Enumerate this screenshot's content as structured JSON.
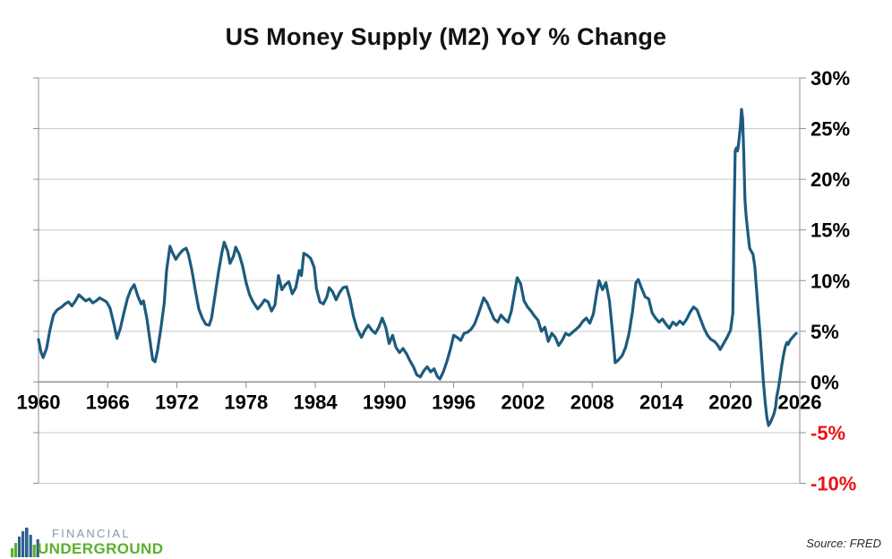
{
  "chart_data": {
    "type": "line",
    "title": "US Money Supply (M2) YoY % Change",
    "xlabel": "",
    "ylabel": "",
    "xlim": [
      1960,
      2026
    ],
    "ylim": [
      -10,
      30
    ],
    "grid": "horizontal-only",
    "legend": "none",
    "x_ticks": {
      "values": [
        1960,
        1966,
        1972,
        1978,
        1984,
        1990,
        1996,
        2002,
        2008,
        2014,
        2020,
        2026
      ],
      "labels": [
        "1960",
        "1966",
        "1972",
        "1978",
        "1984",
        "1990",
        "1996",
        "2002",
        "2008",
        "2014",
        "2020",
        "2026"
      ]
    },
    "y_ticks": {
      "values": [
        30,
        25,
        20,
        15,
        10,
        5,
        0,
        -5,
        -10
      ],
      "labels": [
        "30%",
        "25%",
        "20%",
        "15%",
        "10%",
        "5%",
        "0%",
        "-5%",
        "-10%"
      ]
    },
    "series": [
      {
        "name": "M2 money stock year-over-year percent change",
        "color": "#1c5b7e",
        "points": [
          [
            1960.0,
            4.2
          ],
          [
            1960.2,
            3.0
          ],
          [
            1960.4,
            2.4
          ],
          [
            1960.7,
            3.3
          ],
          [
            1961.0,
            5.2
          ],
          [
            1961.3,
            6.6
          ],
          [
            1961.6,
            7.1
          ],
          [
            1962.0,
            7.4
          ],
          [
            1962.3,
            7.7
          ],
          [
            1962.6,
            7.9
          ],
          [
            1962.9,
            7.5
          ],
          [
            1963.2,
            8.0
          ],
          [
            1963.5,
            8.6
          ],
          [
            1963.8,
            8.3
          ],
          [
            1964.1,
            8.0
          ],
          [
            1964.4,
            8.2
          ],
          [
            1964.7,
            7.8
          ],
          [
            1965.0,
            8.0
          ],
          [
            1965.3,
            8.3
          ],
          [
            1965.6,
            8.1
          ],
          [
            1965.9,
            7.9
          ],
          [
            1966.2,
            7.3
          ],
          [
            1966.5,
            5.9
          ],
          [
            1966.8,
            4.3
          ],
          [
            1967.1,
            5.3
          ],
          [
            1967.4,
            6.8
          ],
          [
            1967.7,
            8.2
          ],
          [
            1968.0,
            9.1
          ],
          [
            1968.3,
            9.6
          ],
          [
            1968.6,
            8.5
          ],
          [
            1968.9,
            7.7
          ],
          [
            1969.1,
            8.0
          ],
          [
            1969.4,
            6.2
          ],
          [
            1969.7,
            3.8
          ],
          [
            1969.9,
            2.2
          ],
          [
            1970.1,
            2.0
          ],
          [
            1970.3,
            3.0
          ],
          [
            1970.6,
            5.2
          ],
          [
            1970.9,
            7.8
          ],
          [
            1971.1,
            11.0
          ],
          [
            1971.4,
            13.4
          ],
          [
            1971.6,
            12.8
          ],
          [
            1971.9,
            12.1
          ],
          [
            1972.2,
            12.6
          ],
          [
            1972.5,
            13.0
          ],
          [
            1972.8,
            13.2
          ],
          [
            1973.0,
            12.6
          ],
          [
            1973.3,
            11.0
          ],
          [
            1973.6,
            9.0
          ],
          [
            1973.9,
            7.2
          ],
          [
            1974.2,
            6.3
          ],
          [
            1974.5,
            5.7
          ],
          [
            1974.8,
            5.6
          ],
          [
            1975.0,
            6.3
          ],
          [
            1975.3,
            8.5
          ],
          [
            1975.6,
            10.8
          ],
          [
            1975.9,
            12.8
          ],
          [
            1976.1,
            13.8
          ],
          [
            1976.4,
            12.9
          ],
          [
            1976.6,
            11.7
          ],
          [
            1976.9,
            12.4
          ],
          [
            1977.1,
            13.3
          ],
          [
            1977.4,
            12.6
          ],
          [
            1977.7,
            11.4
          ],
          [
            1978.0,
            9.8
          ],
          [
            1978.3,
            8.6
          ],
          [
            1978.6,
            7.9
          ],
          [
            1979.0,
            7.2
          ],
          [
            1979.3,
            7.6
          ],
          [
            1979.6,
            8.1
          ],
          [
            1979.9,
            7.9
          ],
          [
            1980.2,
            7.0
          ],
          [
            1980.5,
            7.6
          ],
          [
            1980.8,
            10.5
          ],
          [
            1981.1,
            9.1
          ],
          [
            1981.4,
            9.6
          ],
          [
            1981.7,
            9.9
          ],
          [
            1982.0,
            8.7
          ],
          [
            1982.3,
            9.3
          ],
          [
            1982.6,
            11.0
          ],
          [
            1982.8,
            10.5
          ],
          [
            1983.0,
            12.7
          ],
          [
            1983.3,
            12.5
          ],
          [
            1983.6,
            12.2
          ],
          [
            1983.9,
            11.3
          ],
          [
            1984.1,
            9.2
          ],
          [
            1984.4,
            7.9
          ],
          [
            1984.7,
            7.7
          ],
          [
            1985.0,
            8.4
          ],
          [
            1985.2,
            9.3
          ],
          [
            1985.5,
            8.9
          ],
          [
            1985.8,
            8.1
          ],
          [
            1986.1,
            8.8
          ],
          [
            1986.4,
            9.3
          ],
          [
            1986.7,
            9.4
          ],
          [
            1987.0,
            8.2
          ],
          [
            1987.3,
            6.5
          ],
          [
            1987.6,
            5.3
          ],
          [
            1988.0,
            4.4
          ],
          [
            1988.3,
            5.1
          ],
          [
            1988.6,
            5.6
          ],
          [
            1988.9,
            5.1
          ],
          [
            1989.2,
            4.8
          ],
          [
            1989.5,
            5.4
          ],
          [
            1989.8,
            6.3
          ],
          [
            1990.1,
            5.4
          ],
          [
            1990.4,
            3.8
          ],
          [
            1990.7,
            4.6
          ],
          [
            1991.0,
            3.4
          ],
          [
            1991.3,
            2.9
          ],
          [
            1991.6,
            3.3
          ],
          [
            1991.9,
            2.8
          ],
          [
            1992.2,
            2.1
          ],
          [
            1992.5,
            1.5
          ],
          [
            1992.8,
            0.7
          ],
          [
            1993.1,
            0.5
          ],
          [
            1993.4,
            1.1
          ],
          [
            1993.7,
            1.5
          ],
          [
            1994.0,
            1.0
          ],
          [
            1994.3,
            1.3
          ],
          [
            1994.6,
            0.5
          ],
          [
            1994.8,
            0.3
          ],
          [
            1995.1,
            1.0
          ],
          [
            1995.4,
            2.0
          ],
          [
            1995.7,
            3.2
          ],
          [
            1996.0,
            4.6
          ],
          [
            1996.3,
            4.4
          ],
          [
            1996.6,
            4.1
          ],
          [
            1996.9,
            4.8
          ],
          [
            1997.2,
            4.9
          ],
          [
            1997.5,
            5.2
          ],
          [
            1997.8,
            5.7
          ],
          [
            1998.1,
            6.6
          ],
          [
            1998.4,
            7.6
          ],
          [
            1998.6,
            8.3
          ],
          [
            1998.9,
            7.8
          ],
          [
            1999.2,
            7.0
          ],
          [
            1999.5,
            6.2
          ],
          [
            1999.8,
            5.9
          ],
          [
            2000.1,
            6.6
          ],
          [
            2000.4,
            6.2
          ],
          [
            2000.7,
            5.9
          ],
          [
            2001.0,
            7.0
          ],
          [
            2001.3,
            9.0
          ],
          [
            2001.5,
            10.3
          ],
          [
            2001.8,
            9.7
          ],
          [
            2002.1,
            8.0
          ],
          [
            2002.4,
            7.4
          ],
          [
            2002.7,
            7.0
          ],
          [
            2003.0,
            6.5
          ],
          [
            2003.3,
            6.1
          ],
          [
            2003.6,
            5.0
          ],
          [
            2003.9,
            5.4
          ],
          [
            2004.2,
            4.0
          ],
          [
            2004.5,
            4.8
          ],
          [
            2004.8,
            4.4
          ],
          [
            2005.1,
            3.6
          ],
          [
            2005.4,
            4.1
          ],
          [
            2005.7,
            4.8
          ],
          [
            2006.0,
            4.6
          ],
          [
            2006.3,
            4.9
          ],
          [
            2006.6,
            5.2
          ],
          [
            2006.9,
            5.5
          ],
          [
            2007.2,
            6.0
          ],
          [
            2007.5,
            6.3
          ],
          [
            2007.8,
            5.8
          ],
          [
            2008.1,
            6.7
          ],
          [
            2008.4,
            8.8
          ],
          [
            2008.6,
            10.0
          ],
          [
            2008.9,
            9.1
          ],
          [
            2009.2,
            9.8
          ],
          [
            2009.5,
            8.0
          ],
          [
            2009.8,
            4.5
          ],
          [
            2010.0,
            1.9
          ],
          [
            2010.3,
            2.2
          ],
          [
            2010.6,
            2.6
          ],
          [
            2010.9,
            3.4
          ],
          [
            2011.2,
            4.8
          ],
          [
            2011.5,
            7.0
          ],
          [
            2011.8,
            9.8
          ],
          [
            2012.0,
            10.1
          ],
          [
            2012.3,
            9.2
          ],
          [
            2012.6,
            8.4
          ],
          [
            2012.9,
            8.2
          ],
          [
            2013.2,
            6.8
          ],
          [
            2013.5,
            6.3
          ],
          [
            2013.8,
            5.9
          ],
          [
            2014.1,
            6.2
          ],
          [
            2014.4,
            5.7
          ],
          [
            2014.7,
            5.3
          ],
          [
            2015.0,
            5.9
          ],
          [
            2015.3,
            5.6
          ],
          [
            2015.6,
            6.0
          ],
          [
            2015.9,
            5.7
          ],
          [
            2016.2,
            6.2
          ],
          [
            2016.5,
            6.9
          ],
          [
            2016.8,
            7.4
          ],
          [
            2017.1,
            7.1
          ],
          [
            2017.4,
            6.2
          ],
          [
            2017.7,
            5.3
          ],
          [
            2018.0,
            4.6
          ],
          [
            2018.3,
            4.2
          ],
          [
            2018.6,
            4.0
          ],
          [
            2018.9,
            3.6
          ],
          [
            2019.1,
            3.2
          ],
          [
            2019.4,
            3.8
          ],
          [
            2019.7,
            4.4
          ],
          [
            2020.0,
            5.1
          ],
          [
            2020.2,
            6.8
          ],
          [
            2020.3,
            16.0
          ],
          [
            2020.4,
            22.8
          ],
          [
            2020.5,
            23.1
          ],
          [
            2020.6,
            22.8
          ],
          [
            2020.7,
            23.5
          ],
          [
            2020.85,
            25.2
          ],
          [
            2020.95,
            26.9
          ],
          [
            2021.05,
            26.0
          ],
          [
            2021.15,
            22.5
          ],
          [
            2021.25,
            18.0
          ],
          [
            2021.35,
            16.4
          ],
          [
            2021.5,
            14.8
          ],
          [
            2021.65,
            13.2
          ],
          [
            2021.8,
            12.9
          ],
          [
            2021.95,
            12.6
          ],
          [
            2022.1,
            11.4
          ],
          [
            2022.25,
            9.2
          ],
          [
            2022.4,
            7.0
          ],
          [
            2022.55,
            4.8
          ],
          [
            2022.7,
            2.4
          ],
          [
            2022.85,
            0.0
          ],
          [
            2023.0,
            -2.0
          ],
          [
            2023.15,
            -3.5
          ],
          [
            2023.3,
            -4.3
          ],
          [
            2023.45,
            -4.0
          ],
          [
            2023.6,
            -3.6
          ],
          [
            2023.75,
            -3.2
          ],
          [
            2023.9,
            -2.5
          ],
          [
            2024.0,
            -1.5
          ],
          [
            2024.15,
            -0.6
          ],
          [
            2024.3,
            0.5
          ],
          [
            2024.45,
            1.7
          ],
          [
            2024.6,
            2.7
          ],
          [
            2024.75,
            3.5
          ],
          [
            2024.9,
            3.9
          ],
          [
            2025.0,
            3.7
          ],
          [
            2025.15,
            4.1
          ],
          [
            2025.3,
            4.3
          ],
          [
            2025.45,
            4.5
          ],
          [
            2025.6,
            4.7
          ],
          [
            2025.7,
            4.8
          ]
        ]
      }
    ]
  },
  "colors": {
    "line": "#1c5b7e",
    "grid": "#c6c6c6",
    "axis": "#8f8f8f",
    "tick_label": "#000000",
    "negative_tick_label": "#ee1111",
    "title": "#121212"
  },
  "logo": {
    "line1": "FINANCIAL",
    "line2": "UNDERGROUND",
    "line1_color": "#8798a9",
    "line2_color": "#5bb02e",
    "icon_blue": "#2e618c",
    "icon_green": "#5bb02e"
  },
  "source_note": "Source: FRED"
}
